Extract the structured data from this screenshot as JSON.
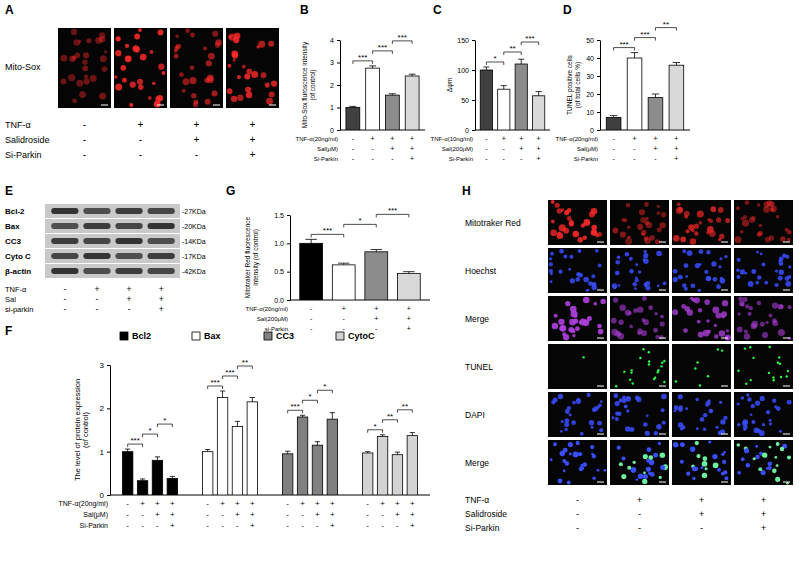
{
  "chart_data": [
    {
      "type": "bar",
      "title": "B",
      "ylabel": [
        "Mito-Sox fluroscence intensity",
        "(of control)"
      ],
      "values": [
        1.0,
        2.75,
        1.55,
        2.4
      ],
      "errors": [
        0.05,
        0.1,
        0.06,
        0.08
      ],
      "colors": [
        "#404040",
        "#ffffff",
        "#8c8c8c",
        "#d9d9d9"
      ],
      "ylim": [
        0,
        4
      ],
      "yticks": [
        0,
        1,
        2,
        3,
        4
      ],
      "brackets": [
        {
          "between": [
            0,
            1
          ],
          "label": "***"
        },
        {
          "between": [
            1,
            2
          ],
          "label": "***"
        },
        {
          "between": [
            2,
            3
          ],
          "label": "***"
        }
      ],
      "conditions": [
        {
          "label": "TNF-α(20ng/ml)",
          "signs": [
            "-",
            "+",
            "+",
            "+"
          ]
        },
        {
          "label": "Sal(μM)",
          "signs": [
            "-",
            "-",
            "+",
            "+"
          ]
        },
        {
          "label": "Si-Parkin",
          "signs": [
            "-",
            "-",
            "-",
            "+"
          ]
        }
      ]
    },
    {
      "type": "bar",
      "title": "C",
      "ylabel": [
        "Δψm"
      ],
      "values": [
        100,
        68,
        110,
        57
      ],
      "errors": [
        5,
        6,
        8,
        7
      ],
      "colors": [
        "#404040",
        "#ffffff",
        "#8c8c8c",
        "#d9d9d9"
      ],
      "ylim": [
        0,
        150
      ],
      "yticks": [
        0,
        50,
        100,
        150
      ],
      "brackets": [
        {
          "between": [
            0,
            1
          ],
          "label": "*"
        },
        {
          "between": [
            1,
            2
          ],
          "label": "**"
        },
        {
          "between": [
            2,
            3
          ],
          "label": "***"
        }
      ],
      "conditions": [
        {
          "label": "TNF-α(10ng/ml)",
          "signs": [
            "-",
            "+",
            "+",
            "+"
          ]
        },
        {
          "label": "Sal(200μM)",
          "signs": [
            "-",
            "-",
            "+",
            "+"
          ]
        },
        {
          "label": "Si-Parkin",
          "signs": [
            "-",
            "-",
            "-",
            "+"
          ]
        }
      ]
    },
    {
      "type": "bar",
      "title": "D",
      "ylabel": [
        "TUNEL positive cells",
        "(of total cells %)"
      ],
      "values": [
        7,
        40,
        18,
        36
      ],
      "errors": [
        1,
        3,
        2,
        1.5
      ],
      "colors": [
        "#404040",
        "#ffffff",
        "#8c8c8c",
        "#d9d9d9"
      ],
      "ylim": [
        0,
        50
      ],
      "yticks": [
        0,
        10,
        20,
        30,
        40,
        50
      ],
      "brackets": [
        {
          "between": [
            0,
            1
          ],
          "label": "***"
        },
        {
          "between": [
            1,
            2
          ],
          "label": "***"
        },
        {
          "between": [
            2,
            3
          ],
          "label": "**"
        }
      ],
      "conditions": [
        {
          "label": "TNF-α(20ng/ml)",
          "signs": [
            "-",
            "+",
            "+",
            "+"
          ]
        },
        {
          "label": "Sal(μM)",
          "signs": [
            "-",
            "-",
            "+",
            "+"
          ]
        },
        {
          "label": "Si-Parkin",
          "signs": [
            "-",
            "-",
            "-",
            "+"
          ]
        }
      ]
    },
    {
      "type": "bar",
      "title": "F",
      "ylabel": [
        "The level of protein expression",
        "(of control)"
      ],
      "legend": "top",
      "series": [
        {
          "name": "Bcl2",
          "color": "#000000",
          "values": [
            1.0,
            0.33,
            0.8,
            0.38
          ],
          "errors": [
            0.06,
            0.04,
            0.08,
            0.05
          ],
          "brackets": [
            {
              "between": [
                0,
                1
              ],
              "label": "***"
            },
            {
              "between": [
                1,
                2
              ],
              "label": "*"
            },
            {
              "between": [
                2,
                3
              ],
              "label": "*"
            }
          ]
        },
        {
          "name": "Bax",
          "color": "#ffffff",
          "values": [
            1.0,
            2.25,
            1.58,
            2.15
          ],
          "errors": [
            0.05,
            0.15,
            0.12,
            0.1
          ],
          "brackets": [
            {
              "between": [
                0,
                1
              ],
              "label": "***"
            },
            {
              "between": [
                1,
                2
              ],
              "label": "***"
            },
            {
              "between": [
                2,
                3
              ],
              "label": "**"
            }
          ]
        },
        {
          "name": "CC3",
          "color": "#808080",
          "values": [
            0.95,
            1.8,
            1.15,
            1.75
          ],
          "errors": [
            0.06,
            0.04,
            0.08,
            0.15
          ],
          "brackets": [
            {
              "between": [
                0,
                1
              ],
              "label": "***"
            },
            {
              "between": [
                1,
                2
              ],
              "label": "*"
            },
            {
              "between": [
                2,
                3
              ],
              "label": "*"
            }
          ]
        },
        {
          "name": "CytoC",
          "color": "#d3d3d3",
          "values": [
            0.97,
            1.35,
            0.93,
            1.37
          ],
          "errors": [
            0.03,
            0.04,
            0.06,
            0.07
          ],
          "brackets": [
            {
              "between": [
                0,
                1
              ],
              "label": "*"
            },
            {
              "between": [
                1,
                2
              ],
              "label": "**"
            },
            {
              "between": [
                2,
                3
              ],
              "label": "**"
            }
          ]
        }
      ],
      "ylim": [
        0,
        3
      ],
      "yticks": [
        0,
        1,
        2,
        3
      ],
      "conditions": [
        {
          "label": "TNF-α(20ng/ml)",
          "signs": [
            "-",
            "+",
            "+",
            "+",
            "-",
            "+",
            "+",
            "+",
            "-",
            "+",
            "+",
            "+",
            "-",
            "+",
            "+",
            "+"
          ]
        },
        {
          "label": "Sal(μM)",
          "signs": [
            "-",
            "-",
            "+",
            "+",
            "-",
            "-",
            "+",
            "+",
            "-",
            "-",
            "+",
            "+",
            "-",
            "-",
            "+",
            "+"
          ]
        },
        {
          "label": "Si-Parkin",
          "signs": [
            "-",
            "-",
            "-",
            "+",
            "-",
            "-",
            "-",
            "+",
            "-",
            "-",
            "-",
            "+",
            "-",
            "-",
            "-",
            "+"
          ]
        }
      ]
    },
    {
      "type": "bar",
      "title": "G",
      "ylabel": [
        "Mitotraker Red fluorescence",
        "intensity (of control)"
      ],
      "values": [
        1.0,
        0.62,
        0.85,
        0.47
      ],
      "errors": [
        0.07,
        0.03,
        0.04,
        0.03
      ],
      "colors": [
        "#000000",
        "#ffffff",
        "#8c8c8c",
        "#d9d9d9"
      ],
      "ylim": [
        0,
        1.5
      ],
      "yticks": [
        {
          "value": 0,
          "label": "0.0"
        },
        0.5,
        {
          "value": 1,
          "label": "1.0"
        },
        1.5
      ],
      "brackets": [
        {
          "between": [
            0,
            1
          ],
          "label": "***"
        },
        {
          "between": [
            1,
            2
          ],
          "label": "*"
        },
        {
          "between": [
            2,
            3
          ],
          "label": "***"
        }
      ],
      "conditions": [
        {
          "label": "TNF-α(20ng/ml)",
          "signs": [
            "-",
            "+",
            "+",
            "+"
          ]
        },
        {
          "label": "Sal(200μM)",
          "signs": [
            "-",
            "-",
            "+",
            "+"
          ]
        },
        {
          "label": "si-Parkin",
          "signs": [
            "-",
            "-",
            "-",
            "+"
          ]
        }
      ]
    }
  ],
  "panel_A": {
    "title": "A",
    "rows": [
      "Mito-Sox"
    ],
    "conditions": [
      {
        "label": "TNF-α",
        "signs": [
          "-",
          "+",
          "+",
          "+"
        ]
      },
      {
        "label": "Salidroside",
        "signs": [
          "-",
          "-",
          "+",
          "+"
        ]
      },
      {
        "label": "Si-Parkin",
        "signs": [
          "-",
          "-",
          "-",
          "+"
        ]
      }
    ]
  },
  "panel_E": {
    "title": "E",
    "bands": [
      {
        "label": "Bcl-2",
        "size": "-27KDa"
      },
      {
        "label": "Bax",
        "size": "-20KDa"
      },
      {
        "label": "CC3",
        "size": "-14KDa"
      },
      {
        "label": "Cyto C",
        "size": "-17KDa"
      },
      {
        "label": "β-actin",
        "size": "-42KDa"
      }
    ],
    "conditions": [
      {
        "label": "TNF-α",
        "signs": [
          "-",
          "+",
          "+",
          "+"
        ]
      },
      {
        "label": "Sal",
        "signs": [
          "-",
          "-",
          "+",
          "+"
        ]
      },
      {
        "label": "si-parkin",
        "signs": [
          "-",
          "-",
          "-",
          "+"
        ]
      }
    ]
  },
  "panel_H": {
    "title": "H",
    "rows": [
      "Mitotraker Red",
      "Hoechst",
      "Merge",
      "TUNEL",
      "DAPI",
      "Merge"
    ],
    "conditions": [
      {
        "label": "TNF-α",
        "signs": [
          "-",
          "+",
          "+",
          "+"
        ]
      },
      {
        "label": "Salidroside",
        "signs": [
          "-",
          "-",
          "+",
          "+"
        ]
      },
      {
        "label": "Si-Parkin",
        "signs": [
          "-",
          "-",
          "-",
          "+"
        ]
      }
    ]
  }
}
